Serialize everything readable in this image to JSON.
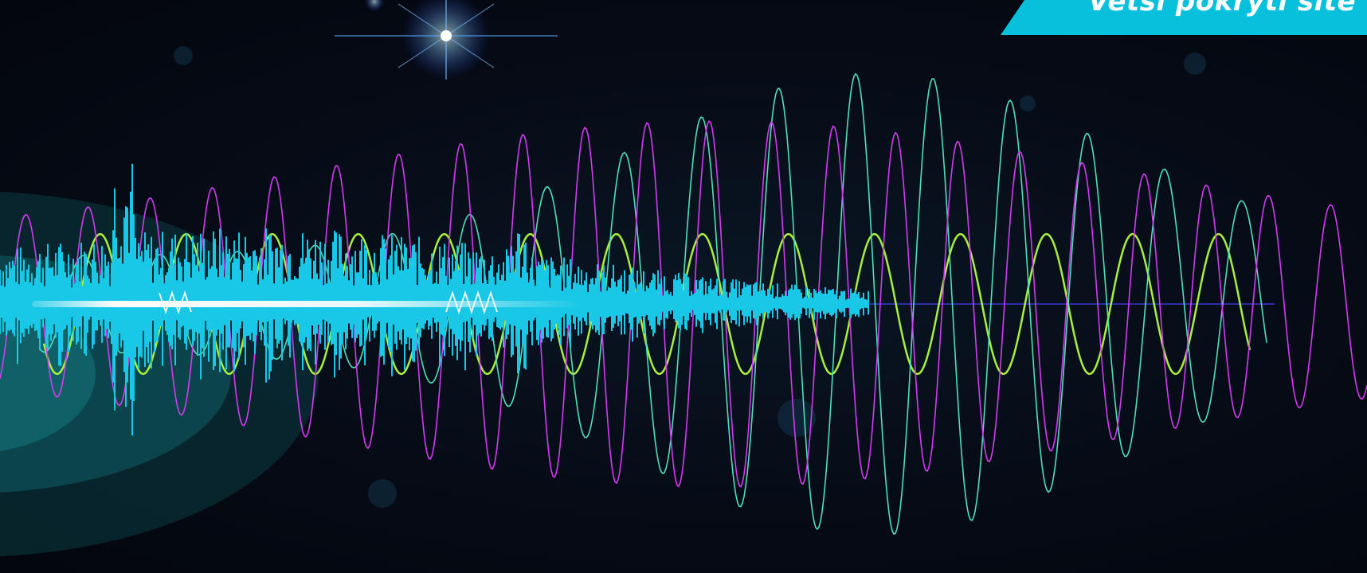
{
  "banner": {
    "tagline": "Větší pokrytí sítě"
  },
  "colors": {
    "background": "#050a14",
    "accent": "#07c0dc",
    "wave_magenta": "#d23cf0",
    "wave_mint": "#4fe0b8",
    "wave_lime": "#a8f03c",
    "waveform_cyan": "#18c8e6",
    "baseline_blue": "#3a36d8"
  }
}
